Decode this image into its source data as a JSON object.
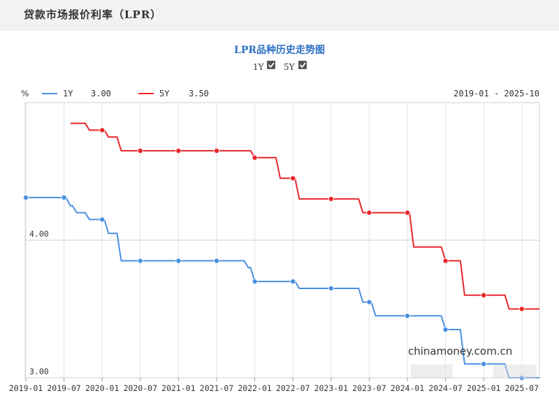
{
  "header": {
    "title": "贷款市场报价利率（LPR）"
  },
  "chart_data": {
    "type": "line",
    "title": "LPR品种历史走势图",
    "toggles": [
      {
        "label": "1Y",
        "checked": true
      },
      {
        "label": "5Y",
        "checked": true
      }
    ],
    "y_unit": "%",
    "range_label": "2019-01 - 2025-10",
    "ylim": [
      3.0,
      5.0
    ],
    "y_ticks": [
      {
        "value": 4.0,
        "label": "4.00"
      },
      {
        "value": 3.0,
        "label": "3.00"
      }
    ],
    "x_range": [
      "2019-01",
      "2025-10"
    ],
    "x_ticks": [
      "2019-01",
      "2019-07",
      "2020-01",
      "2020-07",
      "2021-01",
      "2021-07",
      "2022-01",
      "2022-07",
      "2023-01",
      "2023-07",
      "2024-01",
      "2024-07",
      "2025-01",
      "2025-07"
    ],
    "grid": true,
    "legend_position": "top-left",
    "series": [
      {
        "name": "1Y",
        "legend_value": "3.00",
        "color": "#4a90e2",
        "steps": [
          [
            "2019-01",
            4.31
          ],
          [
            "2019-08",
            4.25
          ],
          [
            "2019-09",
            4.2
          ],
          [
            "2019-11",
            4.15
          ],
          [
            "2020-02",
            4.05
          ],
          [
            "2020-04",
            3.85
          ],
          [
            "2021-12",
            3.8
          ],
          [
            "2022-01",
            3.7
          ],
          [
            "2022-08",
            3.65
          ],
          [
            "2023-06",
            3.55
          ],
          [
            "2023-08",
            3.45
          ],
          [
            "2024-07",
            3.35
          ],
          [
            "2024-10",
            3.1
          ],
          [
            "2025-05",
            3.0
          ]
        ],
        "markers": [
          [
            "2019-01",
            4.31
          ],
          [
            "2019-07",
            4.31
          ],
          [
            "2020-01",
            4.15
          ],
          [
            "2020-07",
            3.85
          ],
          [
            "2021-01",
            3.85
          ],
          [
            "2021-07",
            3.85
          ],
          [
            "2022-01",
            3.7
          ],
          [
            "2022-07",
            3.7
          ],
          [
            "2023-01",
            3.65
          ],
          [
            "2023-07",
            3.55
          ],
          [
            "2024-01",
            3.45
          ],
          [
            "2024-07",
            3.35
          ],
          [
            "2025-01",
            3.1
          ],
          [
            "2025-07",
            3.0
          ]
        ]
      },
      {
        "name": "5Y",
        "legend_value": "3.50",
        "color": "#e8262a",
        "steps": [
          [
            "2019-08",
            4.85
          ],
          [
            "2019-11",
            4.8
          ],
          [
            "2020-02",
            4.75
          ],
          [
            "2020-04",
            4.65
          ],
          [
            "2022-01",
            4.6
          ],
          [
            "2022-05",
            4.45
          ],
          [
            "2022-08",
            4.3
          ],
          [
            "2023-06",
            4.2
          ],
          [
            "2024-02",
            3.95
          ],
          [
            "2024-05",
            3.95
          ],
          [
            "2024-07",
            3.85
          ],
          [
            "2024-10",
            3.6
          ],
          [
            "2025-05",
            3.5
          ]
        ],
        "markers": [
          [
            "2020-01",
            4.8
          ],
          [
            "2020-07",
            4.65
          ],
          [
            "2021-01",
            4.65
          ],
          [
            "2021-07",
            4.65
          ],
          [
            "2022-01",
            4.6
          ],
          [
            "2022-07",
            4.45
          ],
          [
            "2023-01",
            4.3
          ],
          [
            "2023-07",
            4.2
          ],
          [
            "2024-01",
            4.2
          ],
          [
            "2024-07",
            3.85
          ],
          [
            "2025-01",
            3.6
          ],
          [
            "2025-07",
            3.5
          ]
        ]
      }
    ]
  },
  "watermark": {
    "text": "chinamoney.com.cn"
  }
}
